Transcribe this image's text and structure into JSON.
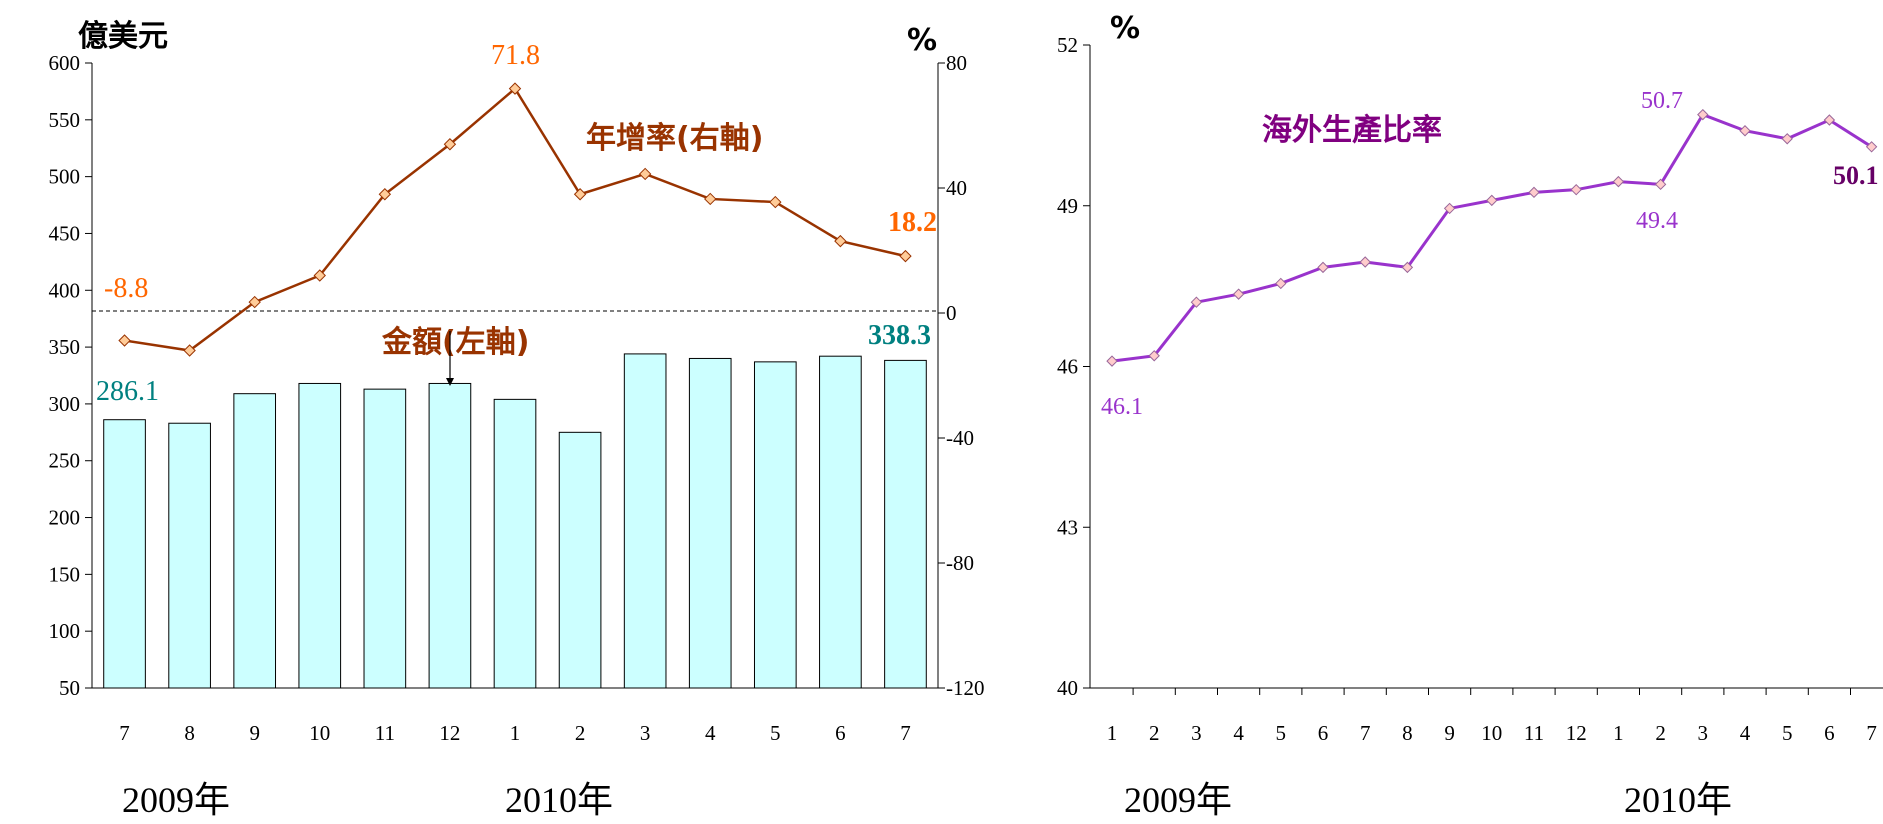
{
  "chart_data": [
    {
      "type": "bar+line",
      "left_unit": "億美元",
      "right_unit": "%",
      "categories": [
        "7",
        "8",
        "9",
        "10",
        "11",
        "12",
        "1",
        "2",
        "3",
        "4",
        "5",
        "6",
        "7"
      ],
      "year_labels": [
        "2009年",
        "2010年"
      ],
      "ylim_left": [
        50,
        600
      ],
      "yticks_left": [
        "50",
        "100",
        "150",
        "200",
        "250",
        "300",
        "350",
        "400",
        "450",
        "500",
        "550",
        "600"
      ],
      "ylim_right": [
        -120,
        80
      ],
      "yticks_right": [
        "-120",
        "-80",
        "-40",
        "0",
        "40",
        "80"
      ],
      "series": [
        {
          "name": "金額(左軸)",
          "type": "bar",
          "axis": "left",
          "color": "#CCFFFF",
          "values": [
            286.1,
            283,
            309,
            318,
            313,
            318,
            304,
            275,
            344,
            340,
            337,
            342,
            338.3
          ]
        },
        {
          "name": "年增率(右軸)",
          "type": "line",
          "axis": "right",
          "color": "#993300",
          "values": [
            -8.8,
            -12,
            3.5,
            12,
            38,
            54,
            71.8,
            38,
            44.5,
            36.5,
            35.5,
            23,
            18.2
          ]
        }
      ],
      "annotations": {
        "first_bar": "286.1",
        "last_bar": "338.3",
        "first_line": "-8.8",
        "peak_line": "71.8",
        "last_line": "18.2"
      },
      "colors": {
        "bar_label": "#008080",
        "line_label": "#FF6600",
        "series_title": "#993300"
      }
    },
    {
      "type": "line",
      "title": "海外生產比率",
      "unit": "%",
      "categories": [
        "1",
        "2",
        "3",
        "4",
        "5",
        "6",
        "7",
        "8",
        "9",
        "10",
        "11",
        "12",
        "1",
        "2",
        "3",
        "4",
        "5",
        "6",
        "7"
      ],
      "year_labels": [
        "2009年",
        "2010年"
      ],
      "ylim": [
        40,
        52
      ],
      "yticks": [
        "40",
        "43",
        "46",
        "49",
        "52"
      ],
      "series": [
        {
          "name": "海外生產比率",
          "color": "#9933CC",
          "values": [
            46.1,
            46.2,
            47.2,
            47.35,
            47.55,
            47.85,
            47.95,
            47.85,
            48.95,
            49.1,
            49.25,
            49.3,
            49.45,
            49.4,
            50.7,
            50.4,
            50.25,
            50.6,
            50.1
          ]
        }
      ],
      "annotations": {
        "first": "46.1",
        "low": "49.4",
        "peak": "50.7",
        "last": "50.1"
      },
      "colors": {
        "label": "#9933CC",
        "last_label": "#660066",
        "title": "#800080"
      }
    }
  ]
}
